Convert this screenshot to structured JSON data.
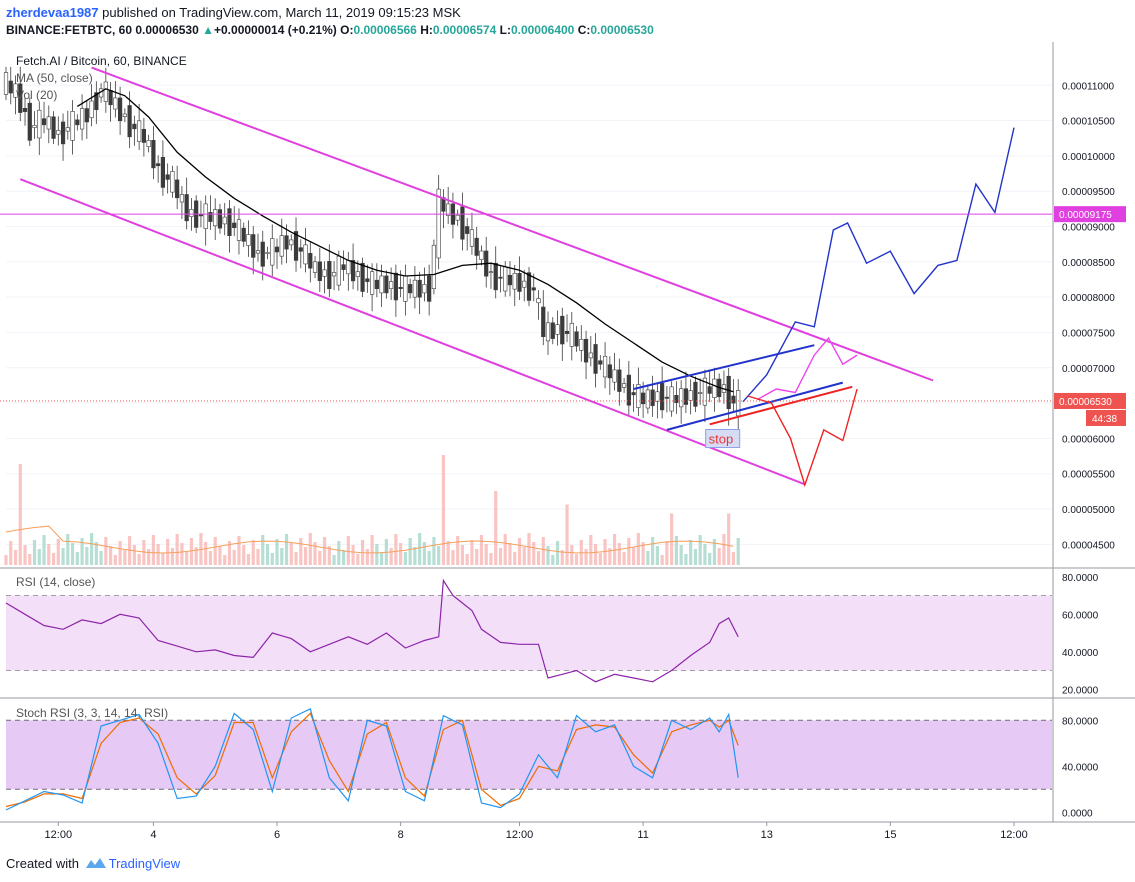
{
  "header": {
    "user": "zherdevaa1987",
    "published_text": " published on TradingView.com, March 11, 2019 09:15:23 MSK",
    "symbol": "BINANCE:FETBTC, 60",
    "last": "0.00006530",
    "change_arrow": "▲",
    "change": "+0.00000014 (+0.21%)",
    "o_label": "O:",
    "o_value": "0.00006566",
    "h_label": "H:",
    "h_value": "0.00006574",
    "l_label": "L:",
    "l_value": "0.00006400",
    "c_label": "C:",
    "c_value": "0.00006530"
  },
  "footer": {
    "created_with": "Created with",
    "brand": "TradingView"
  },
  "colors": {
    "up": "#26a69a",
    "down": "#ef5350",
    "channel": "#e040e0",
    "ma": "#000000",
    "rsi": "#8e24aa",
    "rsi_band": "#f3e0f8",
    "stoch_band": "#e6c9f5",
    "stoch_k": "#2196f3",
    "stoch_d": "#ef6c00",
    "blue_path": "#2233cc",
    "red_path": "#ee2222",
    "pink_path": "#ee44ee"
  },
  "chart_data": [
    {
      "type": "candlestick",
      "title": "Fetch.AI / Bitcoin, 60, BINANCE",
      "indicators": [
        "MA (50, close)",
        "Vol (20)"
      ],
      "price_axis": [
        "0.00011000",
        "0.00010500",
        "0.00010000",
        "0.00009500",
        "0.00009000",
        "0.00008500",
        "0.00008000",
        "0.00007500",
        "0.00007000",
        "0.00006500",
        "0.00006000",
        "0.00005500",
        "0.00005000",
        "0.00004500"
      ],
      "time_axis": [
        "12:00",
        "4",
        "6",
        "8",
        "12:00",
        "11",
        "13",
        "15",
        "12:00"
      ],
      "ylim": [
        4.25e-05,
        0.000114
      ],
      "last_price_label": "0.00006530",
      "countdown": "44:38",
      "level_label": "0.00009175",
      "level_price": 9.175e-05,
      "close_path": [
        [
          0,
          0.0001105
        ],
        [
          3,
          0.000109
        ],
        [
          6,
          0.000104
        ],
        [
          9,
          0.000105
        ],
        [
          12,
          0.000103
        ],
        [
          15,
          0.0001045
        ],
        [
          18,
          0.000106
        ],
        [
          21,
          0.0001095
        ],
        [
          24,
          0.000107
        ],
        [
          27,
          0.0001045
        ],
        [
          30,
          0.0001025
        ],
        [
          33,
          9.8e-05
        ],
        [
          36,
          9.6e-05
        ],
        [
          39,
          9.2e-05
        ],
        [
          42,
          9.15e-05
        ],
        [
          45,
          9.12e-05
        ],
        [
          48,
          9.05e-05
        ],
        [
          51,
          8.85e-05
        ],
        [
          54,
          8.6e-05
        ],
        [
          57,
          8.65e-05
        ],
        [
          60,
          8.8e-05
        ],
        [
          63,
          8.65e-05
        ],
        [
          66,
          8.38e-05
        ],
        [
          69,
          8.3e-05
        ],
        [
          72,
          8.45e-05
        ],
        [
          75,
          8.3e-05
        ],
        [
          78,
          8.18e-05
        ],
        [
          81,
          8.18e-05
        ],
        [
          84,
          8.12e-05
        ],
        [
          87,
          8.12e-05
        ],
        [
          90,
          8.12e-05
        ],
        [
          92,
          9.35e-05
        ],
        [
          94,
          9.2e-05
        ],
        [
          96,
          9.1e-05
        ],
        [
          98,
          8.9e-05
        ],
        [
          100,
          8.65e-05
        ],
        [
          103,
          8.3e-05
        ],
        [
          106,
          8.25e-05
        ],
        [
          109,
          8.2e-05
        ],
        [
          112,
          8.1e-05
        ],
        [
          114,
          7.5e-05
        ],
        [
          117,
          7.55e-05
        ],
        [
          120,
          7.45e-05
        ],
        [
          123,
          7.2e-05
        ],
        [
          126,
          7.05e-05
        ],
        [
          129,
          6.85e-05
        ],
        [
          132,
          6.65e-05
        ],
        [
          135,
          6.55e-05
        ],
        [
          138,
          6.6e-05
        ],
        [
          141,
          6.55e-05
        ],
        [
          144,
          6.6e-05
        ],
        [
          147,
          6.65e-05
        ],
        [
          150,
          6.72e-05
        ],
        [
          152,
          6.7e-05
        ],
        [
          154,
          6.5e-05
        ]
      ],
      "ma_path": [
        [
          15,
          0.000107
        ],
        [
          21,
          0.0001095
        ],
        [
          25,
          0.0001085
        ],
        [
          30,
          0.0001055
        ],
        [
          36,
          0.0001005
        ],
        [
          42,
          9.7e-05
        ],
        [
          48,
          9.4e-05
        ],
        [
          54,
          9.15e-05
        ],
        [
          60,
          8.92e-05
        ],
        [
          66,
          8.72e-05
        ],
        [
          72,
          8.52e-05
        ],
        [
          78,
          8.38e-05
        ],
        [
          84,
          8.3e-05
        ],
        [
          90,
          8.32e-05
        ],
        [
          96,
          8.45e-05
        ],
        [
          102,
          8.48e-05
        ],
        [
          108,
          8.38e-05
        ],
        [
          114,
          8.18e-05
        ],
        [
          120,
          7.92e-05
        ],
        [
          126,
          7.62e-05
        ],
        [
          132,
          7.35e-05
        ],
        [
          138,
          7.08e-05
        ],
        [
          144,
          6.88e-05
        ],
        [
          150,
          6.72e-05
        ],
        [
          153,
          6.66e-05
        ]
      ],
      "drawings": {
        "channel_upper": [
          [
            18,
            0.0001125
          ],
          [
            195,
            6.82e-05
          ]
        ],
        "channel_lower": [
          [
            3,
            9.67e-05
          ],
          [
            168,
            5.35e-05
          ]
        ],
        "wedge_upper": [
          [
            132,
            6.7e-05
          ],
          [
            170,
            7.32e-05
          ]
        ],
        "wedge_lower": [
          [
            139,
            6.12e-05
          ],
          [
            176,
            6.79e-05
          ]
        ],
        "red_line": [
          [
            148,
            6.2e-05
          ],
          [
            178,
            6.73e-05
          ]
        ],
        "blue_forecast": [
          [
            155,
            6.52e-05
          ],
          [
            160,
            6.9e-05
          ],
          [
            166,
            7.65e-05
          ],
          [
            170,
            7.58e-05
          ],
          [
            174,
            8.95e-05
          ],
          [
            177,
            9.05e-05
          ],
          [
            181,
            8.48e-05
          ],
          [
            186,
            8.65e-05
          ],
          [
            191,
            8.05e-05
          ],
          [
            196,
            8.45e-05
          ],
          [
            200,
            8.52e-05
          ],
          [
            204,
            9.6e-05
          ],
          [
            208,
            9.2e-05
          ],
          [
            212,
            0.000104
          ]
        ],
        "pink_forecast": [
          [
            158,
            6.55e-05
          ],
          [
            162,
            6.7e-05
          ],
          [
            166,
            6.65e-05
          ],
          [
            170,
            7.18e-05
          ],
          [
            173,
            7.42e-05
          ],
          [
            176,
            7.05e-05
          ],
          [
            179,
            7.18e-05
          ]
        ],
        "red_forecast": [
          [
            156,
            6.6e-05
          ],
          [
            161,
            6.5e-05
          ],
          [
            165,
            6e-05
          ],
          [
            168,
            5.34e-05
          ],
          [
            172,
            6.12e-05
          ],
          [
            176,
            5.97e-05
          ],
          [
            179,
            6.7e-05
          ]
        ],
        "stop_label": "stop"
      },
      "volume_spikes": [
        [
          3,
          0.9
        ],
        [
          92,
          1.0
        ],
        [
          103,
          0.6
        ],
        [
          118,
          0.45
        ],
        [
          140,
          0.35
        ],
        [
          152,
          0.35
        ]
      ]
    },
    {
      "type": "line",
      "title": "RSI (14, close)",
      "y_axis": [
        "80.0000",
        "60.0000",
        "40.0000",
        "20.0000"
      ],
      "ylim": [
        18,
        82
      ],
      "band": [
        30,
        70
      ],
      "values": [
        [
          0,
          66
        ],
        [
          4,
          60
        ],
        [
          8,
          54
        ],
        [
          12,
          52
        ],
        [
          16,
          57
        ],
        [
          20,
          55
        ],
        [
          24,
          60
        ],
        [
          28,
          58
        ],
        [
          32,
          46
        ],
        [
          36,
          43
        ],
        [
          40,
          40
        ],
        [
          44,
          41
        ],
        [
          48,
          38
        ],
        [
          52,
          37
        ],
        [
          56,
          50
        ],
        [
          60,
          47
        ],
        [
          64,
          40
        ],
        [
          68,
          44
        ],
        [
          72,
          48
        ],
        [
          76,
          44
        ],
        [
          80,
          50
        ],
        [
          84,
          42
        ],
        [
          88,
          46
        ],
        [
          91,
          48
        ],
        [
          92,
          78
        ],
        [
          94,
          70
        ],
        [
          96,
          66
        ],
        [
          98,
          62
        ],
        [
          100,
          52
        ],
        [
          104,
          45
        ],
        [
          108,
          44
        ],
        [
          112,
          44
        ],
        [
          114,
          26
        ],
        [
          117,
          28
        ],
        [
          120,
          30
        ],
        [
          124,
          24
        ],
        [
          128,
          28
        ],
        [
          132,
          26
        ],
        [
          136,
          24
        ],
        [
          140,
          30
        ],
        [
          144,
          38
        ],
        [
          148,
          45
        ],
        [
          150,
          55
        ],
        [
          152,
          58
        ],
        [
          154,
          48
        ]
      ]
    },
    {
      "type": "line",
      "title": "Stoch RSI (3, 3, 14, 14, RSI)",
      "y_axis": [
        "80.0000",
        "40.0000",
        "0.0000"
      ],
      "ylim": [
        -5,
        95
      ],
      "band": [
        20,
        80
      ],
      "series": [
        {
          "name": "K",
          "values": [
            [
              0,
              2
            ],
            [
              4,
              10
            ],
            [
              8,
              18
            ],
            [
              12,
              15
            ],
            [
              16,
              8
            ],
            [
              20,
              75
            ],
            [
              24,
              80
            ],
            [
              28,
              85
            ],
            [
              32,
              60
            ],
            [
              36,
              12
            ],
            [
              40,
              14
            ],
            [
              44,
              40
            ],
            [
              48,
              86
            ],
            [
              52,
              72
            ],
            [
              56,
              18
            ],
            [
              60,
              82
            ],
            [
              64,
              90
            ],
            [
              68,
              30
            ],
            [
              72,
              10
            ],
            [
              76,
              80
            ],
            [
              80,
              75
            ],
            [
              84,
              18
            ],
            [
              88,
              10
            ],
            [
              92,
              84
            ],
            [
              96,
              76
            ],
            [
              100,
              8
            ],
            [
              104,
              4
            ],
            [
              108,
              16
            ],
            [
              112,
              50
            ],
            [
              116,
              30
            ],
            [
              120,
              84
            ],
            [
              124,
              70
            ],
            [
              128,
              76
            ],
            [
              132,
              40
            ],
            [
              136,
              30
            ],
            [
              140,
              80
            ],
            [
              144,
              72
            ],
            [
              148,
              82
            ],
            [
              150,
              70
            ],
            [
              152,
              85
            ],
            [
              154,
              30
            ]
          ]
        },
        {
          "name": "D",
          "values": [
            [
              0,
              5
            ],
            [
              4,
              9
            ],
            [
              8,
              16
            ],
            [
              12,
              16
            ],
            [
              16,
              12
            ],
            [
              20,
              60
            ],
            [
              24,
              78
            ],
            [
              28,
              82
            ],
            [
              32,
              68
            ],
            [
              36,
              30
            ],
            [
              40,
              16
            ],
            [
              44,
              32
            ],
            [
              48,
              78
            ],
            [
              52,
              78
            ],
            [
              56,
              30
            ],
            [
              60,
              70
            ],
            [
              64,
              86
            ],
            [
              68,
              45
            ],
            [
              72,
              18
            ],
            [
              76,
              68
            ],
            [
              80,
              78
            ],
            [
              84,
              30
            ],
            [
              88,
              14
            ],
            [
              92,
              72
            ],
            [
              96,
              80
            ],
            [
              100,
              20
            ],
            [
              104,
              6
            ],
            [
              108,
              12
            ],
            [
              112,
              40
            ],
            [
              116,
              36
            ],
            [
              120,
              72
            ],
            [
              124,
              76
            ],
            [
              128,
              74
            ],
            [
              132,
              50
            ],
            [
              136,
              34
            ],
            [
              140,
              70
            ],
            [
              144,
              76
            ],
            [
              148,
              80
            ],
            [
              150,
              74
            ],
            [
              152,
              80
            ],
            [
              154,
              58
            ]
          ]
        }
      ]
    }
  ]
}
